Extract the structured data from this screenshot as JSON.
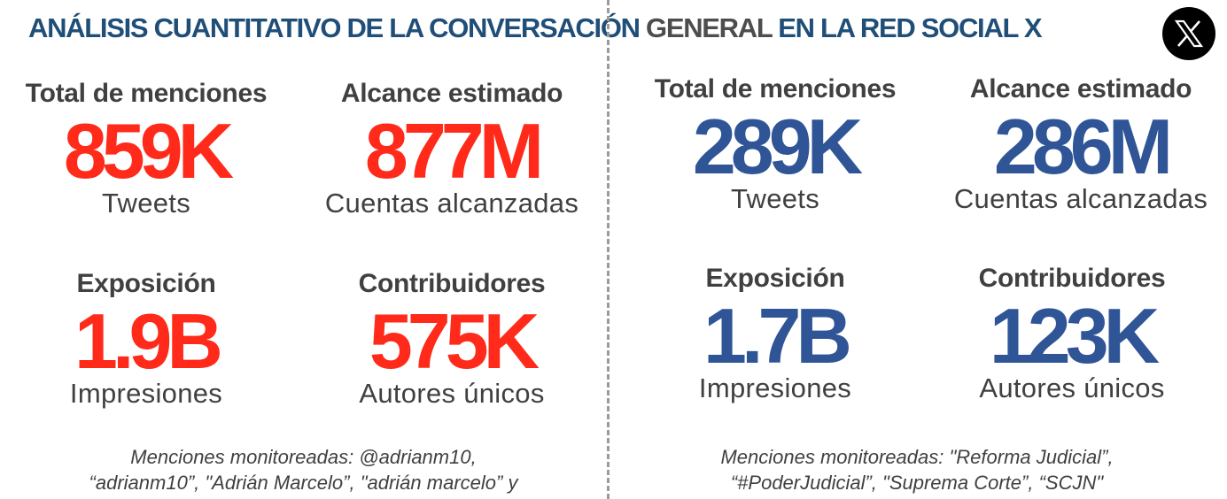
{
  "header": {
    "title_part1": "ANÁLISIS CUANTITATIVO DE LA CONVERSACIÓN ",
    "title_part2": "GENERAL",
    "title_part3": " EN LA RED SOCIAL X",
    "logo_icon": "x-logo-icon"
  },
  "colors": {
    "left_accent": "#ff2a1a",
    "right_accent": "#2f5597",
    "title_blue": "#1f4e79",
    "title_grey": "#4d4d4d"
  },
  "left": {
    "mentions": {
      "label": "Total de menciones",
      "value": "859K",
      "unit": "Tweets"
    },
    "reach": {
      "label": "Alcance estimado",
      "value": "877M",
      "unit": "Cuentas alcanzadas"
    },
    "exposure": {
      "label": "Exposición",
      "value": "1.9B",
      "unit": "Impresiones"
    },
    "contributors": {
      "label": "Contribuidores",
      "value": "575K",
      "unit": "Autores únicos"
    },
    "note_line1": "Menciones monitoreadas: @adrianm10,",
    "note_line2": "“adrianm10”, \"Adrián Marcelo”, \"adrián marcelo” y"
  },
  "right": {
    "mentions": {
      "label": "Total de menciones",
      "value": "289K",
      "unit": "Tweets"
    },
    "reach": {
      "label": "Alcance estimado",
      "value": "286M",
      "unit": "Cuentas alcanzadas"
    },
    "exposure": {
      "label": "Exposición",
      "value": "1.7B",
      "unit": "Impresiones"
    },
    "contributors": {
      "label": "Contribuidores",
      "value": "123K",
      "unit": "Autores únicos"
    },
    "note_line1": "Menciones monitoreadas: \"Reforma Judicial”,",
    "note_line2": "“#PoderJudicial”, \"Suprema Corte”, “SCJN\""
  }
}
